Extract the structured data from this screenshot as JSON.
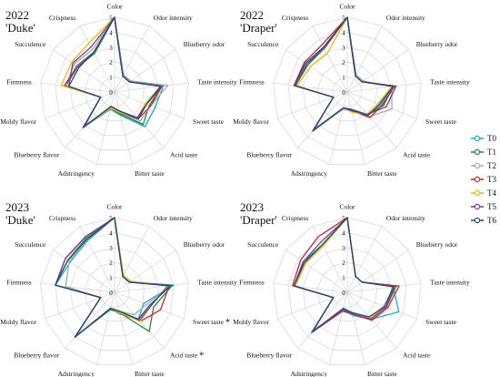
{
  "legend": {
    "labels": [
      "T0",
      "T1",
      "T2",
      "T3",
      "T4",
      "T5",
      "T6"
    ],
    "colors": [
      "#22a7c9",
      "#1f8a3a",
      "#a8a8a8",
      "#d1202e",
      "#f0b800",
      "#7a3b96",
      "#1f4f7a"
    ]
  },
  "tick_labels": [
    "0",
    "1",
    "2",
    "3",
    "4",
    "5"
  ],
  "chart_data": [
    {
      "type": "radar",
      "title": "2022",
      "subtitle": "'Duke'",
      "axes": [
        "Color",
        "Odor intensity",
        "Blueberry odor",
        "Taste intensity",
        "Sweet taste",
        "Acid taste",
        "Bitter taste",
        "Adstringency",
        "Blueberry flavor",
        "Moldy flavor",
        "Firmness",
        "Succulence",
        "Crispness"
      ],
      "axis_markers": [
        "",
        "",
        "",
        "",
        "",
        "",
        "",
        "",
        "",
        "",
        "",
        "",
        ""
      ],
      "range": [
        0,
        5
      ],
      "series": [
        {
          "name": "T0",
          "values": [
            5,
            1.3,
            1.3,
            3.3,
            2.9,
            3.1,
            1.6,
            1.2,
            3.2,
            1.0,
            3.3,
            3.1,
            3.0
          ]
        },
        {
          "name": "T1",
          "values": [
            5,
            1.2,
            1.2,
            3.2,
            2.5,
            2.9,
            1.5,
            1.1,
            3.1,
            1.0,
            3.3,
            3.0,
            2.9
          ]
        },
        {
          "name": "T2",
          "values": [
            5,
            1.3,
            1.3,
            3.6,
            2.6,
            2.6,
            1.4,
            1.1,
            3.0,
            1.0,
            3.3,
            3.3,
            3.2
          ]
        },
        {
          "name": "T3",
          "values": [
            5,
            1.2,
            1.2,
            3.2,
            2.6,
            2.4,
            1.4,
            1.1,
            3.1,
            1.0,
            3.4,
            3.0,
            3.0
          ]
        },
        {
          "name": "T4",
          "values": [
            5,
            1.2,
            1.2,
            3.1,
            2.2,
            2.3,
            1.4,
            1.1,
            3.2,
            1.0,
            3.6,
            3.5,
            3.7
          ]
        },
        {
          "name": "T5",
          "values": [
            5,
            1.2,
            1.2,
            3.2,
            2.3,
            2.3,
            1.3,
            1.0,
            3.2,
            1.0,
            3.1,
            3.4,
            3.4
          ]
        },
        {
          "name": "T6",
          "values": [
            5,
            1.2,
            1.2,
            3.1,
            2.3,
            2.4,
            1.3,
            1.0,
            3.1,
            1.0,
            3.1,
            2.9,
            3.0
          ]
        }
      ]
    },
    {
      "type": "radar",
      "title": "2022",
      "subtitle": "'Draper'",
      "axes": [
        "Color",
        "Odor intensity",
        "Blueberry odor",
        "Taste intensity",
        "Sweet taste",
        "Acid taste",
        "Bitter taste",
        "Adstringency",
        "Blueberry flavor",
        "Moldy flavor",
        "Firmness",
        "Succulence",
        "Crispness"
      ],
      "axis_markers": [
        "",
        "",
        "",
        "",
        "",
        "",
        "",
        "",
        "",
        "",
        "",
        "",
        ""
      ],
      "range": [
        0,
        5
      ],
      "series": [
        {
          "name": "T0",
          "values": [
            5,
            1.2,
            1.2,
            3.1,
            2.4,
            2.1,
            1.3,
            1.1,
            3.4,
            1.0,
            3.5,
            3.3,
            3.4
          ]
        },
        {
          "name": "T1",
          "values": [
            5,
            1.2,
            1.2,
            3.1,
            2.6,
            2.0,
            1.2,
            1.1,
            3.4,
            1.0,
            3.5,
            3.2,
            3.3
          ]
        },
        {
          "name": "T2",
          "values": [
            5,
            1.3,
            1.3,
            3.0,
            3.2,
            2.2,
            1.3,
            1.2,
            3.5,
            1.0,
            3.5,
            3.4,
            3.4
          ]
        },
        {
          "name": "T3",
          "values": [
            5,
            1.2,
            1.2,
            3.2,
            2.5,
            2.3,
            1.3,
            1.1,
            3.5,
            1.0,
            3.6,
            3.5,
            3.6
          ]
        },
        {
          "name": "T4",
          "values": [
            5,
            1.2,
            1.2,
            3.0,
            2.2,
            2.0,
            1.4,
            1.1,
            3.4,
            1.0,
            3.4,
            3.0,
            2.9
          ]
        },
        {
          "name": "T5",
          "values": [
            5,
            1.2,
            1.2,
            3.3,
            2.8,
            2.0,
            1.3,
            1.1,
            3.5,
            1.0,
            3.5,
            3.3,
            3.3
          ]
        },
        {
          "name": "T6",
          "values": [
            5,
            1.2,
            1.2,
            3.1,
            2.3,
            2.1,
            1.2,
            1.1,
            3.4,
            1.0,
            3.6,
            3.4,
            3.4
          ]
        }
      ]
    },
    {
      "type": "radar",
      "title": "2023",
      "subtitle": "'Duke'",
      "axes": [
        "Color",
        "Odor intensity",
        "Blueberry odor",
        "Taste intensity",
        "Sweet taste",
        "Acid taste",
        "Bitter taste",
        "Adstringency",
        "Blueberry flavor",
        "Moldy flavor",
        "Firmness",
        "Succulence",
        "Crispness"
      ],
      "axis_markers": [
        "",
        "",
        "",
        "",
        "*",
        "*",
        "",
        "",
        "",
        "",
        "",
        "",
        ""
      ],
      "range": [
        0,
        5
      ],
      "series": [
        {
          "name": "T0",
          "values": [
            5,
            1.2,
            1.2,
            4.0,
            2.1,
            2.4,
            1.5,
            1.1,
            4.0,
            1.0,
            4.0,
            3.6,
            3.9
          ]
        },
        {
          "name": "T1",
          "values": [
            5,
            1.2,
            1.2,
            3.9,
            2.8,
            3.5,
            1.4,
            1.2,
            4.0,
            1.0,
            4.0,
            3.8,
            4.1
          ]
        },
        {
          "name": "T2",
          "values": [
            5,
            1.2,
            1.2,
            3.8,
            2.3,
            2.0,
            1.3,
            1.1,
            4.0,
            1.0,
            3.3,
            3.7,
            4.0
          ]
        },
        {
          "name": "T3",
          "values": [
            5,
            1.2,
            1.2,
            3.7,
            3.3,
            2.6,
            1.3,
            1.1,
            4.0,
            1.0,
            4.0,
            4.0,
            4.2
          ]
        },
        {
          "name": "T4",
          "values": [
            5,
            1.3,
            1.3,
            3.6,
            2.6,
            2.6,
            1.4,
            1.1,
            4.0,
            1.0,
            4.0,
            3.8,
            4.0
          ]
        },
        {
          "name": "T5",
          "values": [
            5,
            1.2,
            1.2,
            3.6,
            2.6,
            2.5,
            1.3,
            1.1,
            4.0,
            1.0,
            4.0,
            4.0,
            4.2
          ]
        },
        {
          "name": "T6",
          "values": [
            5,
            1.2,
            1.2,
            3.8,
            2.5,
            2.4,
            1.3,
            1.1,
            4.0,
            1.0,
            4.0,
            3.8,
            4.0
          ]
        }
      ]
    },
    {
      "type": "radar",
      "title": "2023",
      "subtitle": "'Draper'",
      "axes": [
        "Color",
        "Odor intensity",
        "Blueberry odor",
        "Taste intensity",
        "Sweet taste",
        "Acid taste",
        "Bitter taste",
        "Adstringency",
        "Blueberry flavor",
        "Moldy flavor",
        "Firmness",
        "Succulence",
        "Crispness"
      ],
      "axis_markers": [
        "",
        "",
        "",
        "",
        "",
        "",
        "",
        "",
        "",
        "",
        "",
        "",
        ""
      ],
      "range": [
        0,
        5
      ],
      "series": [
        {
          "name": "T0",
          "values": [
            5,
            1.2,
            1.2,
            3.1,
            3.7,
            2.4,
            1.6,
            1.2,
            3.5,
            1.0,
            3.6,
            3.6,
            3.6
          ]
        },
        {
          "name": "T1",
          "values": [
            5,
            1.2,
            1.2,
            3.3,
            2.8,
            2.3,
            1.5,
            1.2,
            3.5,
            1.0,
            3.6,
            3.5,
            3.6
          ]
        },
        {
          "name": "T2",
          "values": [
            5,
            1.2,
            1.2,
            3.2,
            2.6,
            2.3,
            1.5,
            1.2,
            3.5,
            1.0,
            3.6,
            3.4,
            3.5
          ]
        },
        {
          "name": "T3",
          "values": [
            5,
            1.2,
            1.2,
            3.5,
            2.9,
            2.5,
            1.5,
            1.3,
            3.6,
            1.0,
            3.7,
            3.8,
            4.2
          ]
        },
        {
          "name": "T4",
          "values": [
            5,
            1.2,
            1.2,
            3.1,
            2.8,
            2.3,
            1.4,
            1.2,
            3.5,
            1.0,
            3.5,
            3.4,
            3.5
          ]
        },
        {
          "name": "T5",
          "values": [
            5,
            1.2,
            1.2,
            3.2,
            2.8,
            2.4,
            1.5,
            1.2,
            3.6,
            1.0,
            3.6,
            3.6,
            3.8
          ]
        },
        {
          "name": "T6",
          "values": [
            5,
            1.2,
            1.2,
            3.1,
            2.7,
            2.2,
            1.4,
            1.1,
            3.5,
            1.0,
            3.6,
            3.5,
            3.6
          ]
        }
      ]
    }
  ]
}
